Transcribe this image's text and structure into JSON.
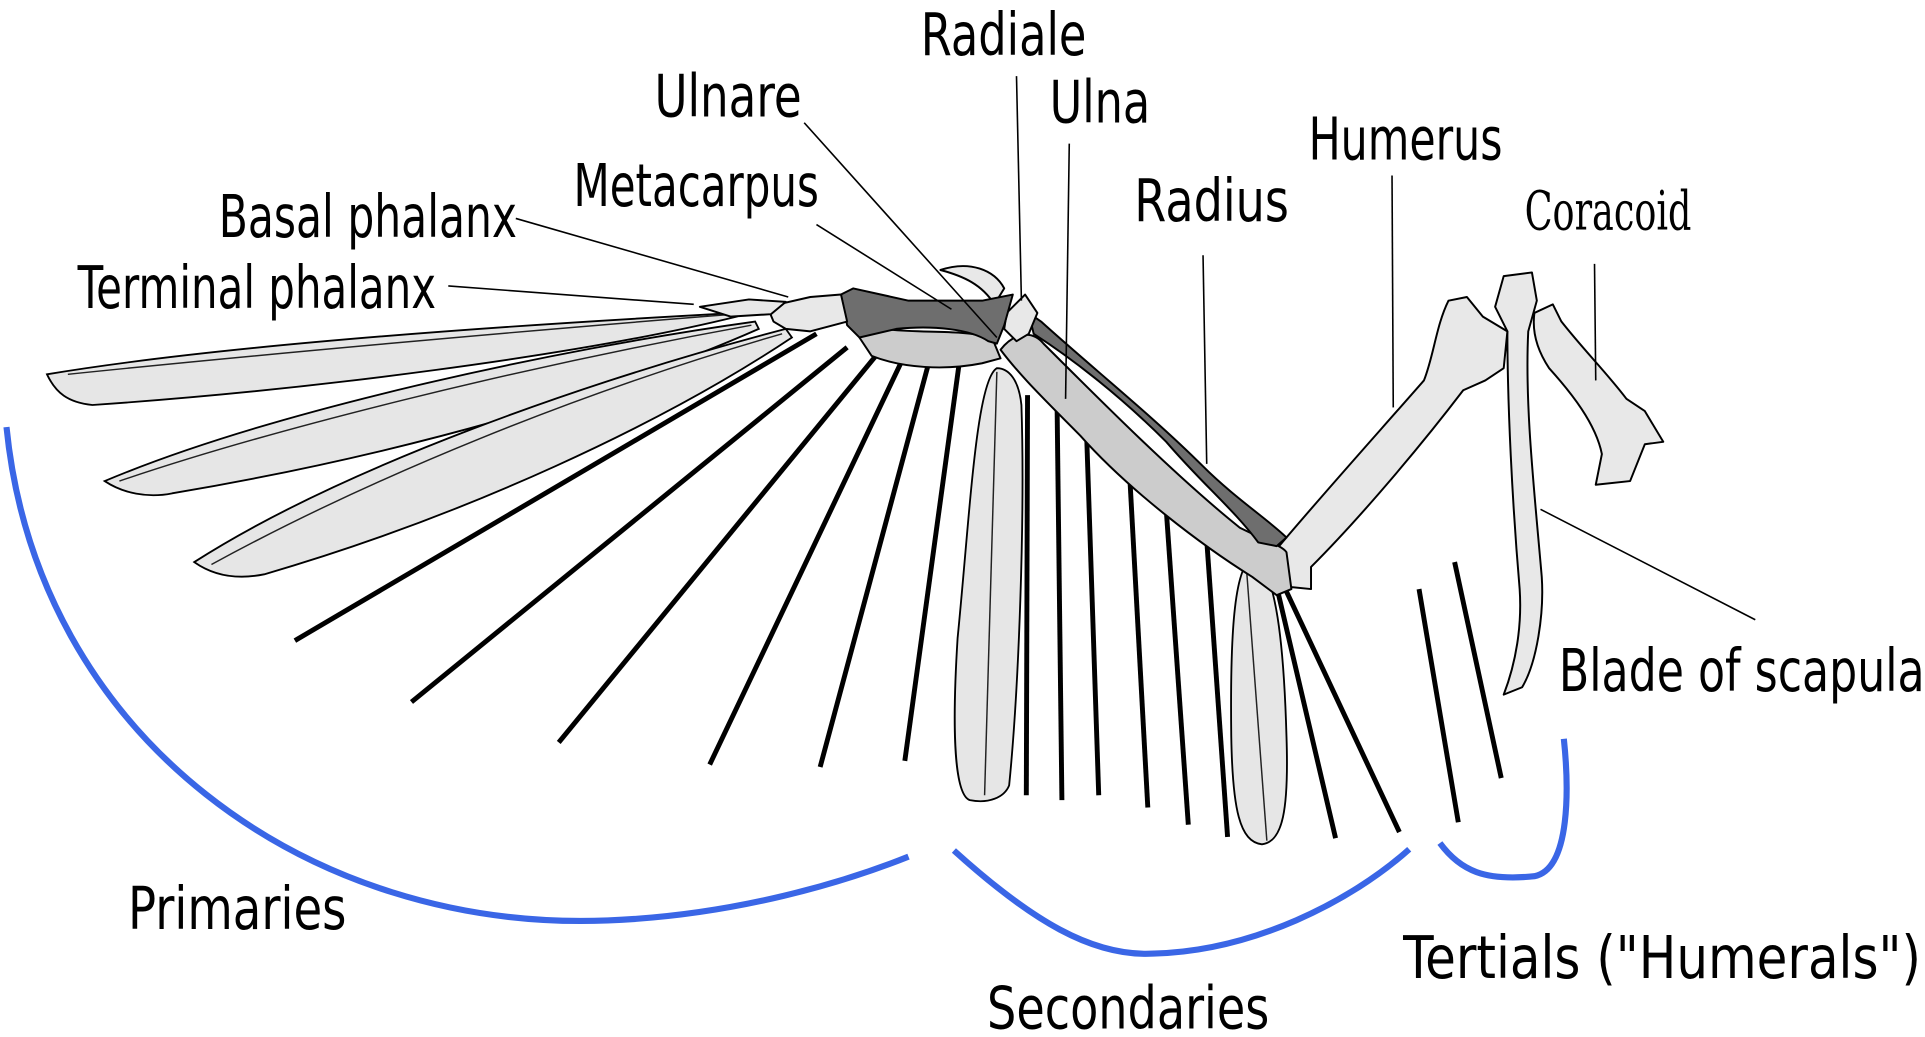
{
  "labels": {
    "radiale": "Radiale",
    "ulnare": "Ulnare",
    "ulna": "Ulna",
    "humerus": "Humerus",
    "metacarpus": "Metacarpus",
    "basal_phalanx": "Basal phalanx",
    "coracoid": "Coracoid",
    "radius": "Radius",
    "terminal_phalanx": "Terminal phalanx",
    "blade_of_scapula": "Blade of scapula",
    "primaries": "Primaries",
    "secondaries": "Secondaries",
    "tertials": "Tertials (\"Humerals\")"
  },
  "colors": {
    "feather_group_bracket": "#3a66e6",
    "bone_light": "#e8e8e8",
    "bone_mid": "#cccccc",
    "bone_dark": "#6e6e6e",
    "feather_fill": "#e6e6e6"
  }
}
